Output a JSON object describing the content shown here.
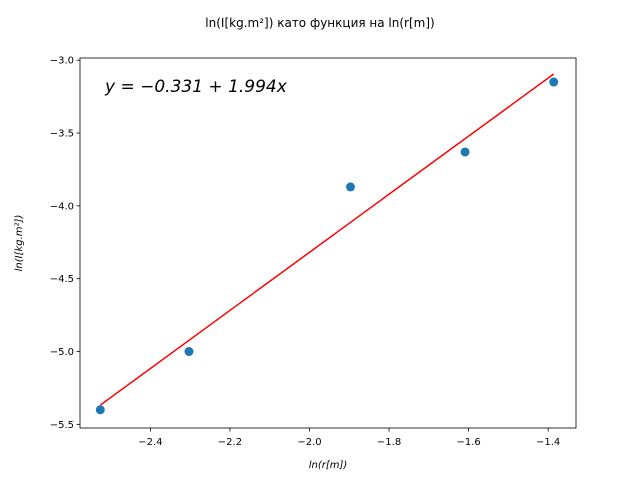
{
  "chart_data": {
    "type": "scatter",
    "title": "ln(I[kg.m²]) като функция на ln(r[m])",
    "xlabel": "ln(r[m])",
    "ylabel": "ln(I[kg.m²])",
    "annotation": "y = −0.331 + 1.994x",
    "xlim": [
      -2.577,
      -1.33
    ],
    "ylim": [
      -5.525,
      -2.985
    ],
    "xticks": [
      -2.4,
      -2.2,
      -2.0,
      -1.8,
      -1.6,
      -1.4
    ],
    "yticks": [
      -5.5,
      -5.0,
      -4.5,
      -4.0,
      -3.5,
      -3.0
    ],
    "grid": false,
    "series": [
      {
        "type": "scatter",
        "color": "#1f77b4",
        "x": [
          -2.526,
          -2.303,
          -1.897,
          -1.609,
          -1.386
        ],
        "y": [
          -5.4,
          -5.0,
          -3.87,
          -3.63,
          -3.15
        ]
      },
      {
        "type": "line",
        "color": "#ff0000",
        "intercept": -0.331,
        "slope": 1.994,
        "x": [
          -2.526,
          -1.386
        ]
      }
    ]
  }
}
